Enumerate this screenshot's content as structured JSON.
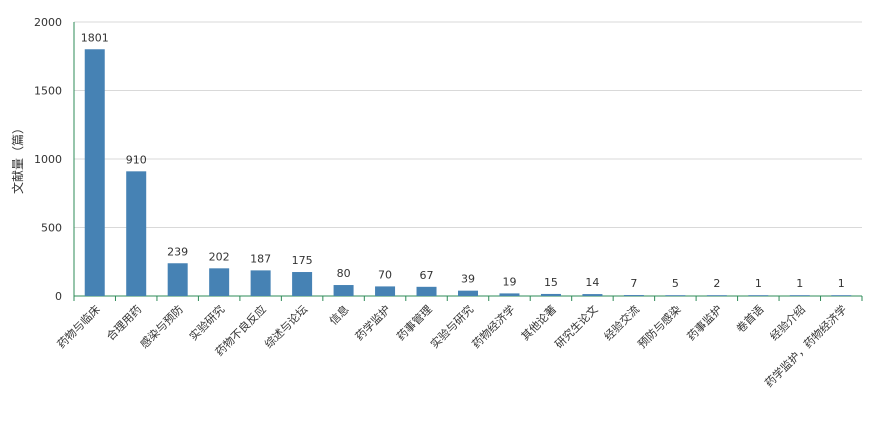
{
  "chart_data": {
    "type": "bar",
    "ylabel": "文献量（篇）",
    "ylim": [
      0,
      2000
    ],
    "yticks": [
      0,
      500,
      1000,
      1500,
      2000
    ],
    "grid": true,
    "bar_color": "#4682b4",
    "categories": [
      "药物与临床",
      "合理用药",
      "感染与预防",
      "实验研究",
      "药物不良反应",
      "综述与论坛",
      "信息",
      "药学监护",
      "药事管理",
      "实验与研究",
      "药物经济学",
      "其他论著",
      "研究生论文",
      "经验交流",
      "预防与感染",
      "药事监护",
      "卷首语",
      "经验介绍",
      "药学监护，药物经济学"
    ],
    "values": [
      1801,
      910,
      239,
      202,
      187,
      175,
      80,
      70,
      67,
      39,
      19,
      15,
      14,
      7,
      5,
      2,
      1,
      1,
      1
    ]
  }
}
